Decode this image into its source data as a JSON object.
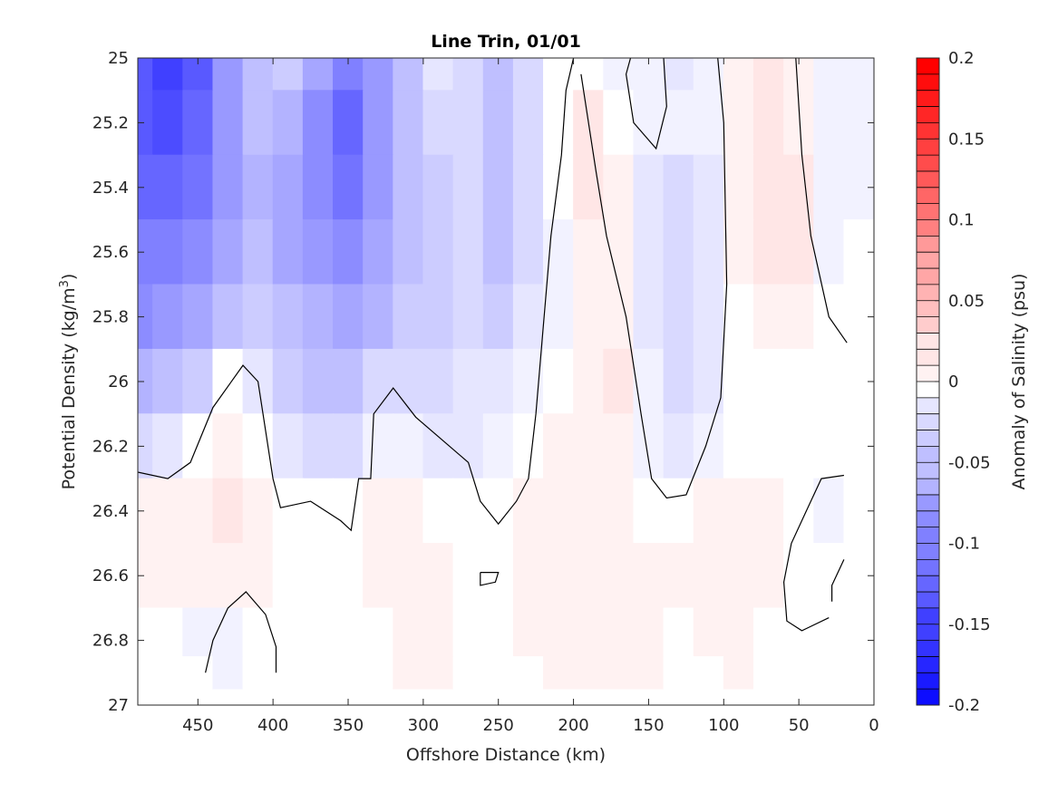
{
  "chart_data": {
    "type": "heatmap",
    "subtype": "filled-contour",
    "title": "Line Trin, 01/01",
    "xlabel": "Offshore Distance (km)",
    "ylabel_main": "Potential Density (kg/m",
    "ylabel_sup": "3",
    "ylabel_close": ")",
    "xlim": [
      490,
      0
    ],
    "x_reversed": true,
    "ylim": [
      25,
      27
    ],
    "y_reversed": true,
    "x_ticks": [
      450,
      400,
      350,
      300,
      250,
      200,
      150,
      100,
      50,
      0
    ],
    "x_tick_labels": [
      "450",
      "400",
      "350",
      "300",
      "250",
      "200",
      "150",
      "100",
      "50",
      "0"
    ],
    "y_ticks": [
      25,
      25.2,
      25.4,
      25.6,
      25.8,
      26,
      26.2,
      26.4,
      26.6,
      26.8,
      27
    ],
    "y_tick_labels": [
      "25",
      "25.2",
      "25.4",
      "25.6",
      "25.8",
      "26",
      "26.2",
      "26.4",
      "26.6",
      "26.8",
      "27"
    ],
    "grid": false,
    "colorbar": {
      "label": "Anomaly of Salinity (psu)",
      "clim": [
        -0.2,
        0.2
      ],
      "levels": 40,
      "step": 0.01,
      "tick_values": [
        0.2,
        0.15,
        0.1,
        0.05,
        0,
        -0.05,
        -0.1,
        -0.15,
        -0.2
      ],
      "tick_labels": [
        "0.2",
        "0.15",
        "0.1",
        "0.05",
        "0",
        "-0.05",
        "-0.1",
        "-0.15",
        "-0.2"
      ],
      "colormap": "blue-white-red",
      "negative_color": "#0000ff",
      "zero_color": "#ffffff",
      "positive_color": "#ff0000",
      "placement": "right"
    },
    "x": [
      490,
      470,
      450,
      430,
      410,
      390,
      370,
      350,
      330,
      310,
      290,
      270,
      250,
      230,
      210,
      190,
      170,
      150,
      130,
      110,
      90,
      70,
      50,
      30,
      10
    ],
    "y": [
      25,
      25.2,
      25.4,
      25.6,
      25.8,
      26,
      26.2,
      26.4,
      26.6,
      26.8,
      26.9
    ],
    "z": [
      [
        -0.13,
        -0.15,
        -0.13,
        -0.08,
        -0.05,
        -0.04,
        -0.07,
        -0.1,
        -0.08,
        -0.05,
        -0.02,
        -0.03,
        -0.05,
        -0.03,
        0.0,
        0.0,
        -0.01,
        -0.01,
        -0.02,
        -0.01,
        0.01,
        0.02,
        0.01,
        -0.01,
        -0.01
      ],
      [
        -0.13,
        -0.14,
        -0.12,
        -0.08,
        -0.05,
        -0.06,
        -0.09,
        -0.12,
        -0.08,
        -0.05,
        -0.03,
        -0.03,
        -0.05,
        -0.03,
        0.0,
        0.02,
        0.0,
        -0.01,
        -0.01,
        -0.01,
        0.01,
        0.02,
        0.01,
        -0.01,
        -0.01
      ],
      [
        -0.12,
        -0.12,
        -0.11,
        -0.08,
        -0.06,
        -0.07,
        -0.09,
        -0.11,
        -0.08,
        -0.05,
        -0.04,
        -0.03,
        -0.05,
        -0.03,
        0.0,
        0.02,
        0.01,
        -0.02,
        -0.03,
        -0.02,
        0.01,
        0.02,
        0.02,
        -0.01,
        -0.01
      ],
      [
        -0.1,
        -0.1,
        -0.09,
        -0.07,
        -0.05,
        -0.07,
        -0.08,
        -0.09,
        -0.07,
        -0.05,
        -0.04,
        -0.03,
        -0.05,
        -0.03,
        -0.01,
        0.01,
        0.01,
        -0.02,
        -0.03,
        -0.02,
        0.01,
        0.02,
        0.02,
        -0.01,
        0.0
      ],
      [
        -0.09,
        -0.08,
        -0.07,
        -0.05,
        -0.04,
        -0.05,
        -0.06,
        -0.07,
        -0.06,
        -0.04,
        -0.04,
        -0.03,
        -0.04,
        -0.02,
        -0.01,
        0.01,
        0.01,
        -0.02,
        -0.03,
        -0.02,
        0.0,
        0.01,
        0.01,
        0.0,
        0.0
      ],
      [
        -0.06,
        -0.05,
        -0.04,
        0.0,
        -0.02,
        -0.04,
        -0.05,
        -0.05,
        -0.03,
        -0.03,
        -0.03,
        -0.02,
        -0.02,
        -0.01,
        0.0,
        0.01,
        0.02,
        -0.01,
        -0.03,
        -0.02,
        0.0,
        0.0,
        0.0,
        0.0,
        0.0
      ],
      [
        -0.03,
        -0.02,
        0.0,
        0.01,
        0.0,
        -0.02,
        -0.03,
        -0.03,
        -0.01,
        -0.01,
        -0.02,
        -0.02,
        -0.01,
        0.0,
        0.01,
        0.01,
        0.01,
        -0.01,
        -0.02,
        -0.01,
        0.0,
        0.0,
        0.0,
        0.0,
        0.0
      ],
      [
        0.01,
        0.01,
        0.01,
        0.02,
        0.01,
        0.0,
        0.0,
        0.0,
        0.01,
        0.01,
        0.0,
        0.0,
        0.0,
        0.01,
        0.01,
        0.01,
        0.01,
        0.0,
        0.0,
        0.01,
        0.01,
        0.01,
        0.0,
        -0.01,
        0.0
      ],
      [
        0.01,
        0.01,
        0.01,
        0.01,
        0.01,
        0.0,
        0.0,
        0.0,
        0.01,
        0.01,
        0.01,
        0.0,
        0.0,
        0.01,
        0.01,
        0.01,
        0.01,
        0.01,
        0.01,
        0.01,
        0.01,
        0.01,
        0.0,
        0.0,
        0.0
      ],
      [
        0.0,
        0.0,
        -0.01,
        -0.01,
        0.0,
        0.0,
        0.0,
        0.0,
        0.0,
        0.01,
        0.01,
        0.0,
        0.0,
        0.01,
        0.01,
        0.01,
        0.01,
        0.01,
        0.0,
        0.01,
        0.01,
        0.0,
        0.0,
        0.0,
        0.0
      ],
      [
        0.0,
        0.0,
        0.0,
        -0.01,
        0.0,
        0.0,
        0.0,
        0.0,
        0.0,
        0.01,
        0.01,
        0.0,
        0.0,
        0.0,
        0.01,
        0.01,
        0.01,
        0.01,
        0.0,
        0.0,
        0.01,
        0.0,
        0.0,
        0.0,
        0.0
      ]
    ],
    "contour_lines": [
      {
        "level": 0,
        "points": [
          [
            490,
            26.28
          ],
          [
            470,
            26.3
          ],
          [
            455,
            26.25
          ],
          [
            440,
            26.08
          ],
          [
            420,
            25.95
          ],
          [
            410,
            26.0
          ],
          [
            400,
            26.3
          ],
          [
            395,
            26.39
          ],
          [
            375,
            26.37
          ],
          [
            355,
            26.43
          ],
          [
            348,
            26.46
          ],
          [
            343,
            26.3
          ],
          [
            335,
            26.3
          ],
          [
            333,
            26.1
          ],
          [
            320,
            26.02
          ],
          [
            305,
            26.11
          ],
          [
            290,
            26.17
          ],
          [
            270,
            26.25
          ],
          [
            262,
            26.37
          ],
          [
            250,
            26.44
          ],
          [
            238,
            26.37
          ],
          [
            230,
            26.3
          ],
          [
            225,
            26.1
          ],
          [
            215,
            25.55
          ],
          [
            208,
            25.3
          ],
          [
            205,
            25.1
          ],
          [
            200,
            25.0
          ]
        ]
      },
      {
        "level": 0,
        "points": [
          [
            195,
            25.05
          ],
          [
            185,
            25.35
          ],
          [
            178,
            25.55
          ],
          [
            165,
            25.8
          ],
          [
            155,
            26.1
          ],
          [
            148,
            26.3
          ],
          [
            138,
            26.36
          ],
          [
            125,
            26.35
          ],
          [
            112,
            26.2
          ],
          [
            102,
            26.05
          ],
          [
            98,
            25.7
          ],
          [
            100,
            25.2
          ],
          [
            104,
            25.0
          ]
        ]
      },
      {
        "level": 0,
        "points": [
          [
            52,
            25.0
          ],
          [
            48,
            25.3
          ],
          [
            42,
            25.55
          ],
          [
            30,
            25.8
          ],
          [
            18,
            25.88
          ]
        ]
      },
      {
        "level": 0,
        "points": [
          [
            140,
            25.0
          ],
          [
            138,
            25.15
          ],
          [
            145,
            25.28
          ],
          [
            160,
            25.2
          ],
          [
            165,
            25.05
          ],
          [
            162,
            25.0
          ]
        ]
      },
      {
        "level": 0,
        "points": [
          [
            445,
            26.9
          ],
          [
            440,
            26.8
          ],
          [
            430,
            26.7
          ],
          [
            418,
            26.65
          ],
          [
            405,
            26.72
          ],
          [
            398,
            26.82
          ],
          [
            398,
            26.9
          ]
        ]
      },
      {
        "level": 0,
        "points": [
          [
            262,
            26.59
          ],
          [
            250,
            26.59
          ],
          [
            252,
            26.62
          ],
          [
            262,
            26.63
          ],
          [
            262,
            26.59
          ]
        ]
      },
      {
        "level": 0,
        "points": [
          [
            20,
            26.29
          ],
          [
            35,
            26.3
          ],
          [
            45,
            26.4
          ],
          [
            55,
            26.5
          ],
          [
            60,
            26.62
          ],
          [
            58,
            26.74
          ],
          [
            48,
            26.77
          ],
          [
            30,
            26.73
          ]
        ]
      },
      {
        "level": 0,
        "points": [
          [
            20,
            26.55
          ],
          [
            28,
            26.63
          ],
          [
            28,
            26.68
          ]
        ]
      }
    ]
  }
}
